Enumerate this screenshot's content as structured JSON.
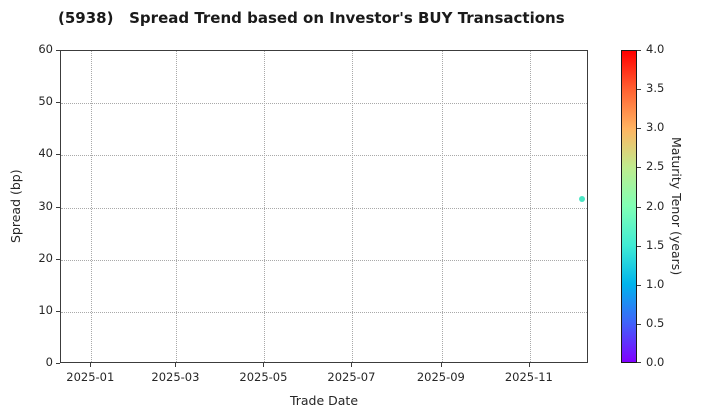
{
  "chart_data": {
    "type": "scatter",
    "title": "(5938)   Spread Trend based on Investor's BUY Transactions",
    "xlabel": "Trade Date",
    "ylabel": "Spread (bp)",
    "ylim": [
      0,
      60
    ],
    "yticks": [
      0,
      10,
      20,
      30,
      40,
      50,
      60
    ],
    "xlim": [
      "2024-12-11",
      "2025-12-12"
    ],
    "xticks": [
      {
        "label": "2025-01",
        "date": "2025-01-01"
      },
      {
        "label": "2025-03",
        "date": "2025-03-01"
      },
      {
        "label": "2025-05",
        "date": "2025-05-01"
      },
      {
        "label": "2025-07",
        "date": "2025-07-01"
      },
      {
        "label": "2025-09",
        "date": "2025-09-01"
      },
      {
        "label": "2025-11",
        "date": "2025-11-01"
      }
    ],
    "grid": true,
    "grid_style": "dotted",
    "points": [
      {
        "date": "2025-12-08",
        "spread_bp": 31.5,
        "maturity_years": 1.7,
        "color": "#4be6c4"
      }
    ],
    "colorbar": {
      "label": "Maturity Tenor (years)",
      "range": [
        0.0,
        4.0
      ],
      "tick_labels": [
        "0.0",
        "0.5",
        "1.0",
        "1.5",
        "2.0",
        "2.5",
        "3.0",
        "3.5",
        "4.0"
      ],
      "colormap": "rainbow",
      "stops": [
        {
          "value": 0.0,
          "color": "#8000ff"
        },
        {
          "value": 0.5,
          "color": "#4062fa"
        },
        {
          "value": 1.0,
          "color": "#00b4ec"
        },
        {
          "value": 1.5,
          "color": "#40ecd4"
        },
        {
          "value": 2.0,
          "color": "#80ffb5"
        },
        {
          "value": 2.5,
          "color": "#bfec8e"
        },
        {
          "value": 3.0,
          "color": "#ffb461"
        },
        {
          "value": 3.5,
          "color": "#ff6232"
        },
        {
          "value": 4.0,
          "color": "#ff0000"
        }
      ]
    },
    "colors": {
      "background": "#ffffff",
      "spine": "#3c3c3c",
      "gridline": "#a9a9a9",
      "text": "#262626"
    }
  }
}
